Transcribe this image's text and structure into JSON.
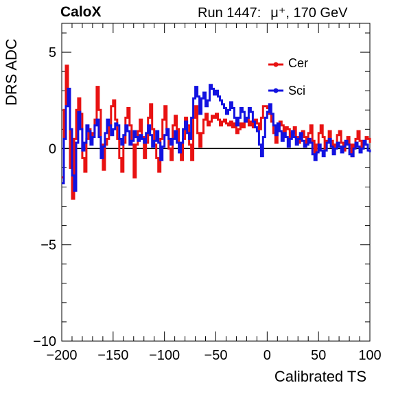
{
  "header": {
    "experiment": "CaloX",
    "run": "Run 1447:",
    "beam": "μ⁺, 170 GeV"
  },
  "colors": {
    "cer": "#e81212",
    "sci": "#1212e0",
    "axis": "#000000"
  },
  "chart_data": {
    "type": "line",
    "title": "",
    "xlabel": "Calibrated TS",
    "ylabel": "DRS ADC",
    "xlim": [
      -200,
      100
    ],
    "ylim": [
      -10,
      6.5
    ],
    "xticks": [
      -200,
      -150,
      -100,
      -50,
      0,
      50,
      100
    ],
    "xtick_labels": [
      "−200",
      "−150",
      "−100",
      "−50",
      "0",
      "50",
      "100"
    ],
    "yticks": [
      -10,
      -5,
      0,
      5
    ],
    "ytick_labels": [
      "−10",
      "−5",
      "0",
      "5"
    ],
    "zero_line": true,
    "legend_position": "top-right",
    "series": [
      {
        "name": "Cer",
        "color": "#e81212",
        "points": [
          [
            -200,
            -1.5
          ],
          [
            -198,
            2.0
          ],
          [
            -196,
            4.3
          ],
          [
            -194,
            3.0
          ],
          [
            -192,
            -1.0
          ],
          [
            -190,
            -2.6
          ],
          [
            -188,
            0.5
          ],
          [
            -186,
            2.0
          ],
          [
            -184,
            2.6
          ],
          [
            -182,
            1.8
          ],
          [
            -180,
            -0.5
          ],
          [
            -178,
            -1.2
          ],
          [
            -176,
            0.5
          ],
          [
            -174,
            1.0
          ],
          [
            -172,
            0.5
          ],
          [
            -170,
            0.8
          ],
          [
            -168,
            1.5
          ],
          [
            -166,
            3.2
          ],
          [
            -164,
            2.0
          ],
          [
            -162,
            0.2
          ],
          [
            -160,
            -1.1
          ],
          [
            -158,
            0.2
          ],
          [
            -156,
            0.5
          ],
          [
            -154,
            1.2
          ],
          [
            -152,
            2.2
          ],
          [
            -150,
            2.5
          ],
          [
            -148,
            1.5
          ],
          [
            -146,
            0.5
          ],
          [
            -144,
            -0.5
          ],
          [
            -142,
            -1.2
          ],
          [
            -140,
            0.3
          ],
          [
            -138,
            1.6
          ],
          [
            -136,
            2.1
          ],
          [
            -134,
            1.2
          ],
          [
            -132,
            0.2
          ],
          [
            -130,
            -1.5
          ],
          [
            -128,
            0.2
          ],
          [
            -126,
            0.9
          ],
          [
            -124,
            1.5
          ],
          [
            -122,
            0.6
          ],
          [
            -120,
            -0.5
          ],
          [
            -118,
            0.3
          ],
          [
            -116,
            1.6
          ],
          [
            -114,
            2.3
          ],
          [
            -112,
            1.0
          ],
          [
            -110,
            0.2
          ],
          [
            -108,
            -0.5
          ],
          [
            -106,
            -1.2
          ],
          [
            -104,
            0.5
          ],
          [
            -102,
            1.5
          ],
          [
            -100,
            2.2
          ],
          [
            -98,
            1.0
          ],
          [
            -96,
            0.0
          ],
          [
            -94,
            -0.6
          ],
          [
            -92,
            1.2
          ],
          [
            -90,
            1.7
          ],
          [
            -88,
            1.0
          ],
          [
            -86,
            0.2
          ],
          [
            -84,
            -0.6
          ],
          [
            -82,
            0.5
          ],
          [
            -80,
            1.6
          ],
          [
            -78,
            1.2
          ],
          [
            -76,
            0.2
          ],
          [
            -74,
            -0.6
          ],
          [
            -72,
            1.6
          ],
          [
            -70,
            2.2
          ],
          [
            -68,
            0.8
          ],
          [
            -66,
            0.1
          ],
          [
            -64,
            0.8
          ],
          [
            -62,
            1.5
          ],
          [
            -60,
            1.8
          ],
          [
            -58,
            1.2
          ],
          [
            -56,
            1.4
          ],
          [
            -54,
            1.7
          ],
          [
            -52,
            1.6
          ],
          [
            -50,
            1.8
          ],
          [
            -48,
            1.5
          ],
          [
            -46,
            1.2
          ],
          [
            -44,
            1.4
          ],
          [
            -42,
            1.5
          ],
          [
            -40,
            1.3
          ],
          [
            -38,
            1.2
          ],
          [
            -36,
            1.4
          ],
          [
            -34,
            1.1
          ],
          [
            -32,
            1.3
          ],
          [
            -30,
            0.8
          ],
          [
            -28,
            1.0
          ],
          [
            -26,
            1.3
          ],
          [
            -24,
            1.1
          ],
          [
            -22,
            1.4
          ],
          [
            -20,
            1.6
          ],
          [
            -18,
            1.2
          ],
          [
            -16,
            1.4
          ],
          [
            -14,
            1.1
          ],
          [
            -12,
            1.5
          ],
          [
            -10,
            1.3
          ],
          [
            -8,
            1.0
          ],
          [
            -6,
            1.6
          ],
          [
            -4,
            2.2
          ],
          [
            -2,
            2.2
          ],
          [
            0,
            2.1
          ],
          [
            2,
            1.8
          ],
          [
            4,
            1.4
          ],
          [
            6,
            0.8
          ],
          [
            8,
            0.3
          ],
          [
            10,
            1.0
          ],
          [
            12,
            1.4
          ],
          [
            14,
            1.2
          ],
          [
            16,
            0.9
          ],
          [
            18,
            1.1
          ],
          [
            20,
            1.0
          ],
          [
            22,
            0.6
          ],
          [
            24,
            0.8
          ],
          [
            26,
            1.1
          ],
          [
            28,
            0.6
          ],
          [
            30,
            0.3
          ],
          [
            32,
            0.7
          ],
          [
            34,
            0.9
          ],
          [
            36,
            0.6
          ],
          [
            38,
            0.3
          ],
          [
            40,
            0.8
          ],
          [
            42,
            1.2
          ],
          [
            44,
            0.4
          ],
          [
            46,
            -0.3
          ],
          [
            48,
            0.2
          ],
          [
            50,
            0.8
          ],
          [
            52,
            1.2
          ],
          [
            54,
            0.6
          ],
          [
            56,
            0.0
          ],
          [
            58,
            0.4
          ],
          [
            60,
            0.9
          ],
          [
            62,
            0.4
          ],
          [
            64,
            -0.2
          ],
          [
            66,
            0.2
          ],
          [
            68,
            0.7
          ],
          [
            70,
            0.9
          ],
          [
            72,
            0.3
          ],
          [
            74,
            -0.1
          ],
          [
            76,
            0.3
          ],
          [
            78,
            0.6
          ],
          [
            80,
            0.2
          ],
          [
            82,
            -0.4
          ],
          [
            84,
            0.2
          ],
          [
            86,
            0.5
          ],
          [
            88,
            0.9
          ],
          [
            90,
            0.4
          ],
          [
            92,
            0.0
          ],
          [
            94,
            0.2
          ],
          [
            96,
            0.6
          ],
          [
            98,
            0.5
          ],
          [
            100,
            0.3
          ]
        ]
      },
      {
        "name": "Sci",
        "color": "#1212e0",
        "points": [
          [
            -200,
            -1.8
          ],
          [
            -198,
            0.5
          ],
          [
            -196,
            2.2
          ],
          [
            -194,
            3.1
          ],
          [
            -192,
            1.0
          ],
          [
            -190,
            -1.4
          ],
          [
            -188,
            -2.2
          ],
          [
            -186,
            0.3
          ],
          [
            -184,
            1.9
          ],
          [
            -182,
            1.0
          ],
          [
            -180,
            -0.1
          ],
          [
            -178,
            0.3
          ],
          [
            -176,
            1.2
          ],
          [
            -174,
            0.9
          ],
          [
            -172,
            0.2
          ],
          [
            -170,
            0.6
          ],
          [
            -168,
            1.2
          ],
          [
            -166,
            1.5
          ],
          [
            -164,
            0.6
          ],
          [
            -162,
            -0.5
          ],
          [
            -160,
            0.1
          ],
          [
            -158,
            0.8
          ],
          [
            -156,
            1.5
          ],
          [
            -154,
            1.2
          ],
          [
            -152,
            0.7
          ],
          [
            -150,
            1.0
          ],
          [
            -148,
            1.3
          ],
          [
            -146,
            1.2
          ],
          [
            -144,
            0.5
          ],
          [
            -142,
            0.2
          ],
          [
            -140,
            0.7
          ],
          [
            -138,
            1.2
          ],
          [
            -136,
            0.9
          ],
          [
            -134,
            0.2
          ],
          [
            -132,
            0.4
          ],
          [
            -130,
            0.9
          ],
          [
            -128,
            0.6
          ],
          [
            -126,
            0.4
          ],
          [
            -124,
            0.7
          ],
          [
            -122,
            0.5
          ],
          [
            -120,
            0.3
          ],
          [
            -118,
            0.8
          ],
          [
            -116,
            1.2
          ],
          [
            -114,
            0.7
          ],
          [
            -112,
            0.1
          ],
          [
            -110,
            0.4
          ],
          [
            -108,
            0.9
          ],
          [
            -106,
            0.3
          ],
          [
            -104,
            -0.6
          ],
          [
            -102,
            0.1
          ],
          [
            -100,
            0.7
          ],
          [
            -98,
            1.0
          ],
          [
            -96,
            0.5
          ],
          [
            -94,
            0.2
          ],
          [
            -92,
            0.5
          ],
          [
            -90,
            0.9
          ],
          [
            -88,
            0.3
          ],
          [
            -86,
            -0.2
          ],
          [
            -84,
            0.3
          ],
          [
            -82,
            1.0
          ],
          [
            -80,
            1.4
          ],
          [
            -78,
            0.8
          ],
          [
            -76,
            0.5
          ],
          [
            -74,
            1.6
          ],
          [
            -72,
            2.6
          ],
          [
            -70,
            3.2
          ],
          [
            -68,
            2.7
          ],
          [
            -66,
            1.8
          ],
          [
            -64,
            2.6
          ],
          [
            -62,
            2.9
          ],
          [
            -60,
            2.2
          ],
          [
            -58,
            2.5
          ],
          [
            -56,
            3.3
          ],
          [
            -54,
            3.1
          ],
          [
            -52,
            2.8
          ],
          [
            -50,
            3.0
          ],
          [
            -48,
            2.7
          ],
          [
            -46,
            2.5
          ],
          [
            -44,
            2.3
          ],
          [
            -42,
            2.1
          ],
          [
            -40,
            1.8
          ],
          [
            -38,
            2.0
          ],
          [
            -36,
            2.4
          ],
          [
            -34,
            2.1
          ],
          [
            -32,
            1.6
          ],
          [
            -30,
            1.2
          ],
          [
            -28,
            1.6
          ],
          [
            -26,
            2.1
          ],
          [
            -24,
            1.9
          ],
          [
            -22,
            1.4
          ],
          [
            -20,
            1.6
          ],
          [
            -18,
            2.1
          ],
          [
            -16,
            1.9
          ],
          [
            -14,
            1.4
          ],
          [
            -12,
            1.1
          ],
          [
            -10,
            0.9
          ],
          [
            -8,
            0.2
          ],
          [
            -6,
            -0.4
          ],
          [
            -4,
            0.6
          ],
          [
            -2,
            1.6
          ],
          [
            0,
            1.9
          ],
          [
            2,
            2.3
          ],
          [
            4,
            1.8
          ],
          [
            6,
            1.2
          ],
          [
            8,
            0.7
          ],
          [
            10,
            1.3
          ],
          [
            12,
            0.9
          ],
          [
            14,
            0.4
          ],
          [
            16,
            0.8
          ],
          [
            18,
            0.6
          ],
          [
            20,
            0.1
          ],
          [
            22,
            0.5
          ],
          [
            24,
            0.9
          ],
          [
            26,
            0.6
          ],
          [
            28,
            0.2
          ],
          [
            30,
            0.5
          ],
          [
            32,
            0.8
          ],
          [
            34,
            0.4
          ],
          [
            36,
            0.1
          ],
          [
            38,
            0.2
          ],
          [
            40,
            0.5
          ],
          [
            42,
            0.3
          ],
          [
            44,
            -0.3
          ],
          [
            46,
            -0.6
          ],
          [
            48,
            -0.2
          ],
          [
            50,
            0.2
          ],
          [
            52,
            -0.1
          ],
          [
            54,
            -0.4
          ],
          [
            56,
            -0.1
          ],
          [
            58,
            0.3
          ],
          [
            60,
            0.5
          ],
          [
            62,
            0.1
          ],
          [
            64,
            -0.3
          ],
          [
            66,
            0.0
          ],
          [
            68,
            0.3
          ],
          [
            70,
            0.1
          ],
          [
            72,
            -0.2
          ],
          [
            74,
            0.1
          ],
          [
            76,
            0.4
          ],
          [
            78,
            0.2
          ],
          [
            80,
            -0.3
          ],
          [
            82,
            -0.4
          ],
          [
            84,
            0.0
          ],
          [
            86,
            0.3
          ],
          [
            88,
            0.1
          ],
          [
            90,
            -0.2
          ],
          [
            92,
            0.0
          ],
          [
            94,
            0.4
          ],
          [
            96,
            0.2
          ],
          [
            98,
            -0.1
          ],
          [
            100,
            -0.2
          ]
        ]
      }
    ]
  }
}
